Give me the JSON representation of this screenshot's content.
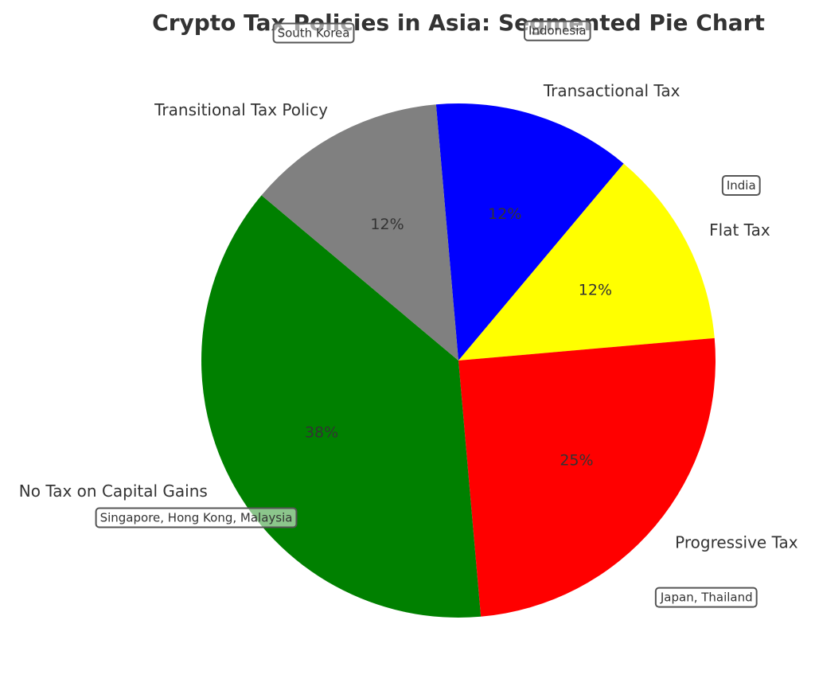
{
  "chart_data": {
    "type": "pie",
    "title": "Crypto Tax Policies in Asia: Segmented Pie Chart",
    "start_angle_deg": 95,
    "direction": "clockwise",
    "slices": [
      {
        "label": "Transactional Tax",
        "value": 12.5,
        "pct_label": "12%",
        "color": "#0000ff",
        "countries": "Indonesia"
      },
      {
        "label": "Flat Tax",
        "value": 12.5,
        "pct_label": "12%",
        "color": "#ffff00",
        "countries": "India"
      },
      {
        "label": "Progressive Tax",
        "value": 25,
        "pct_label": "25%",
        "color": "#ff0000",
        "countries": "Japan, Thailand"
      },
      {
        "label": "No Tax on Capital Gains",
        "value": 37.5,
        "pct_label": "38%",
        "color": "#008000",
        "countries": "Singapore, Hong Kong, Malaysia"
      },
      {
        "label": "Transitional Tax Policy",
        "value": 12.5,
        "pct_label": "12%",
        "color": "#808080",
        "countries": "South Korea"
      }
    ]
  }
}
